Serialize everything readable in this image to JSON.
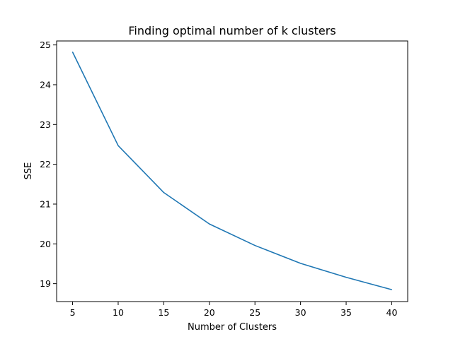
{
  "chart_data": {
    "type": "line",
    "title": "Finding optimal number of k clusters",
    "xlabel": "Number of Clusters",
    "ylabel": "SSE",
    "x": [
      5,
      10,
      15,
      20,
      25,
      30,
      35,
      40
    ],
    "series": [
      {
        "values": [
          24.82,
          22.47,
          21.29,
          20.5,
          19.96,
          19.51,
          19.16,
          18.85
        ],
        "color": "#1f77b4"
      }
    ],
    "xlim": [
      3.25,
      41.75
    ],
    "ylim": [
      18.55,
      25.1
    ],
    "xticks": [
      5,
      10,
      15,
      20,
      25,
      30,
      35,
      40
    ],
    "yticks": [
      19,
      20,
      21,
      22,
      23,
      24,
      25
    ],
    "grid": false,
    "legend": "none"
  }
}
